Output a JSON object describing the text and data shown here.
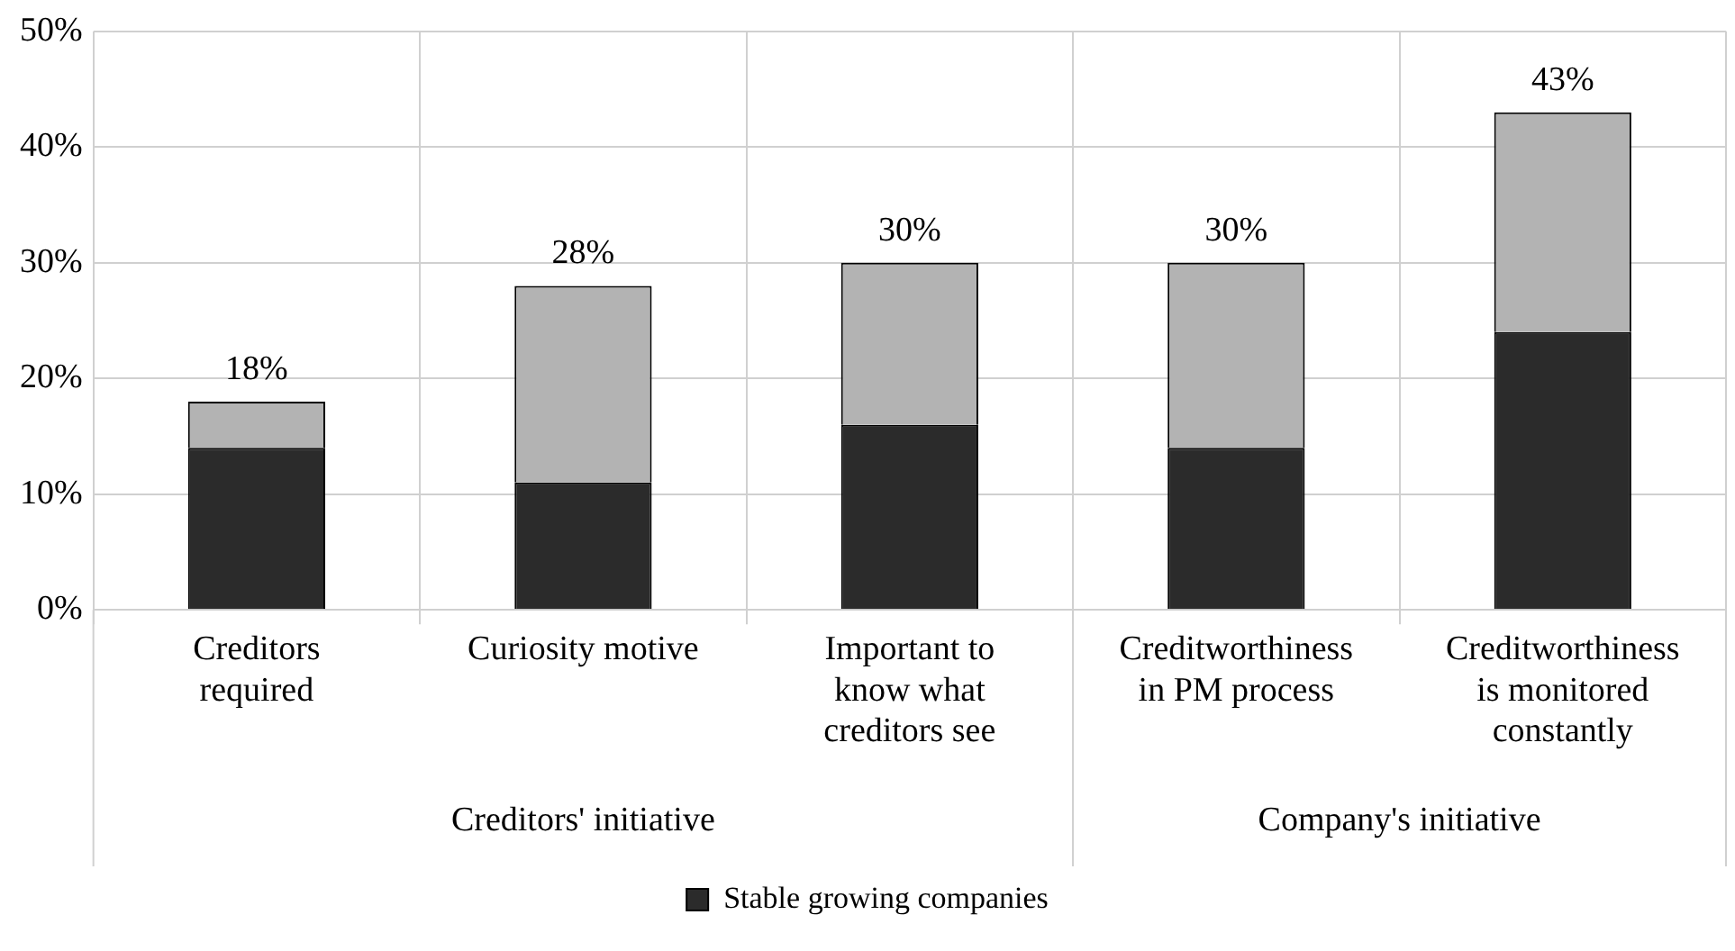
{
  "chart_data": {
    "type": "bar",
    "stacked": true,
    "categories": [
      "Creditors required",
      "Curiosity motive",
      "Important to know what creditors see",
      "Creditworthiness in PM process",
      "Creditworthiness is monitored constantly"
    ],
    "series": [
      {
        "name": "Stable growing companies",
        "color": "#2b2b2b",
        "values": [
          14,
          11,
          16,
          14,
          24
        ]
      },
      {
        "color": "#b3b3b3",
        "values": [
          4,
          17,
          14,
          16,
          19
        ]
      }
    ],
    "totals": [
      "18%",
      "28%",
      "30%",
      "30%",
      "43%"
    ],
    "ylim": [
      0,
      50
    ],
    "yticks": [
      {
        "value": 0,
        "label": "0%"
      },
      {
        "value": 10,
        "label": "10%"
      },
      {
        "value": 20,
        "label": "20%"
      },
      {
        "value": 30,
        "label": "30%"
      },
      {
        "value": 40,
        "label": "40%"
      },
      {
        "value": 50,
        "label": "50%"
      }
    ],
    "annotations": [
      "Creditors' initiative",
      "Company's initiative"
    ],
    "grid": true,
    "legend": "bottom"
  }
}
